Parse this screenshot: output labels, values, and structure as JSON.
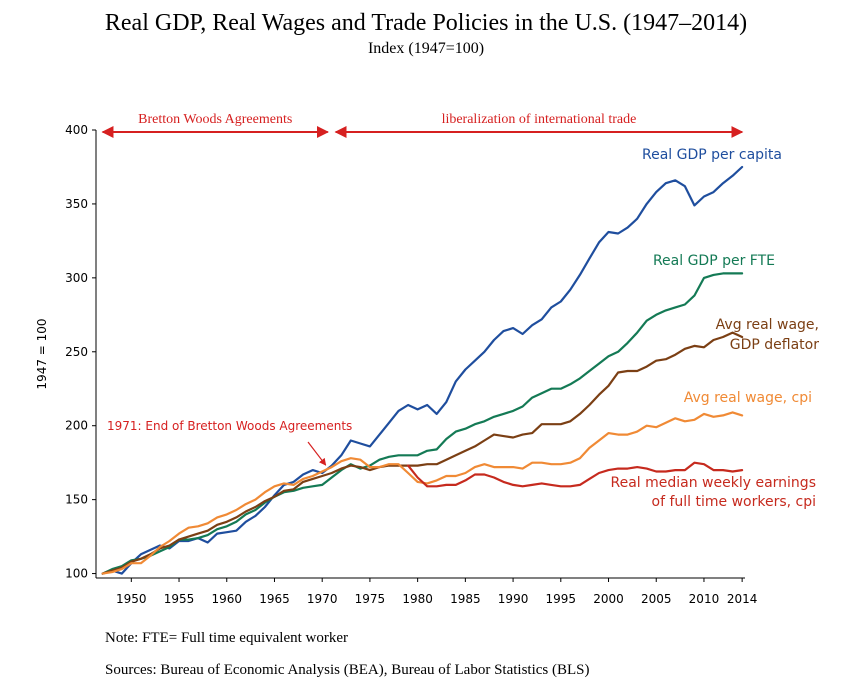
{
  "header": {
    "title": "Real GDP, Real Wages and Trade Policies in the U.S. (1947–2014)",
    "subtitle": "Index (1947=100)"
  },
  "footer": {
    "note": "Note: FTE= Full time equivalent worker",
    "sources": "Sources:  Bureau of Economic Analysis (BEA), Bureau of Labor Statistics (BLS)"
  },
  "chart_data": {
    "type": "line",
    "title": "Real GDP, Real Wages and Trade Policies in the U.S. (1947–2014)",
    "subtitle": "Index (1947=100)",
    "ylabel": "1947 = 100",
    "xlabel": "",
    "xlim": [
      1946.3,
      2014.3
    ],
    "ylim": [
      97,
      400
    ],
    "x_ticks": [
      1950,
      1955,
      1960,
      1965,
      1970,
      1975,
      1980,
      1985,
      1990,
      1995,
      2000,
      2005,
      2010,
      2014
    ],
    "y_ticks": [
      100,
      150,
      200,
      250,
      300,
      350,
      400
    ],
    "grid": false,
    "colors": {
      "gdp_per_capita": "#1f4e9e",
      "gdp_per_fte": "#147a55",
      "wage_deflator": "#7b3f14",
      "wage_cpi": "#f08a35",
      "median_earnings": "#c62a1e",
      "annotation": "#d62020"
    },
    "periods": [
      {
        "label": "Bretton Woods Agreements",
        "from": 1947,
        "to": 1971
      },
      {
        "label": "liberalization of international trade",
        "from": 1971,
        "to": 2014
      }
    ],
    "annotation": {
      "text": "1971: End of Bretton Woods Agreements",
      "x": 1971,
      "y": 176
    },
    "series": [
      {
        "name": "Real GDP per capita",
        "key": "gdp_per_capita",
        "x": [
          1947,
          1948,
          1949,
          1950,
          1951,
          1952,
          1953,
          1954,
          1955,
          1956,
          1957,
          1958,
          1959,
          1960,
          1961,
          1962,
          1963,
          1964,
          1965,
          1966,
          1967,
          1968,
          1969,
          1970,
          1971,
          1972,
          1973,
          1974,
          1975,
          1976,
          1977,
          1978,
          1979,
          1980,
          1981,
          1982,
          1983,
          1984,
          1985,
          1986,
          1987,
          1988,
          1989,
          1990,
          1991,
          1992,
          1993,
          1994,
          1995,
          1996,
          1997,
          1998,
          1999,
          2000,
          2001,
          2002,
          2003,
          2004,
          2005,
          2006,
          2007,
          2008,
          2009,
          2010,
          2011,
          2012,
          2013,
          2014
        ],
        "values": [
          100,
          102,
          100,
          107,
          113,
          116,
          119,
          117,
          122,
          122,
          124,
          121,
          127,
          128,
          129,
          135,
          139,
          145,
          153,
          160,
          162,
          167,
          170,
          168,
          173,
          180,
          190,
          188,
          186,
          194,
          202,
          210,
          214,
          211,
          214,
          208,
          216,
          230,
          238,
          244,
          250,
          258,
          264,
          266,
          262,
          268,
          272,
          280,
          284,
          292,
          302,
          313,
          324,
          331,
          330,
          334,
          340,
          350,
          358,
          364,
          366,
          362,
          349,
          355,
          358,
          364,
          369,
          375
        ]
      },
      {
        "name": "Real GDP per FTE",
        "key": "gdp_per_fte",
        "x": [
          1947,
          1948,
          1949,
          1950,
          1951,
          1952,
          1953,
          1954,
          1955,
          1956,
          1957,
          1958,
          1959,
          1960,
          1961,
          1962,
          1963,
          1964,
          1965,
          1966,
          1967,
          1968,
          1969,
          1970,
          1971,
          1972,
          1973,
          1974,
          1975,
          1976,
          1977,
          1978,
          1979,
          1980,
          1981,
          1982,
          1983,
          1984,
          1985,
          1986,
          1987,
          1988,
          1989,
          1990,
          1991,
          1992,
          1993,
          1994,
          1995,
          1996,
          1997,
          1998,
          1999,
          2000,
          2001,
          2002,
          2003,
          2004,
          2005,
          2006,
          2007,
          2008,
          2009,
          2010,
          2011,
          2012,
          2013,
          2014
        ],
        "values": [
          100,
          103,
          105,
          109,
          110,
          112,
          115,
          118,
          123,
          123,
          124,
          126,
          130,
          132,
          135,
          140,
          143,
          148,
          152,
          155,
          156,
          158,
          159,
          160,
          165,
          170,
          174,
          171,
          173,
          177,
          179,
          180,
          180,
          180,
          183,
          184,
          191,
          196,
          198,
          201,
          203,
          206,
          208,
          210,
          213,
          219,
          222,
          225,
          225,
          228,
          232,
          237,
          242,
          247,
          250,
          256,
          263,
          271,
          275,
          278,
          280,
          282,
          288,
          300,
          302,
          303,
          303,
          303
        ]
      },
      {
        "name": "Avg real wage, GDP deflator",
        "key": "wage_deflator",
        "x": [
          1947,
          1948,
          1949,
          1950,
          1951,
          1952,
          1953,
          1954,
          1955,
          1956,
          1957,
          1958,
          1959,
          1960,
          1961,
          1962,
          1963,
          1964,
          1965,
          1966,
          1967,
          1968,
          1969,
          1970,
          1971,
          1972,
          1973,
          1974,
          1975,
          1976,
          1977,
          1978,
          1979,
          1980,
          1981,
          1982,
          1983,
          1984,
          1985,
          1986,
          1987,
          1988,
          1989,
          1990,
          1991,
          1992,
          1993,
          1994,
          1995,
          1996,
          1997,
          1998,
          1999,
          2000,
          2001,
          2002,
          2003,
          2004,
          2005,
          2006,
          2007,
          2008,
          2009,
          2010,
          2011,
          2012,
          2013,
          2014
        ],
        "values": [
          100,
          102,
          104,
          108,
          110,
          113,
          117,
          119,
          123,
          125,
          127,
          129,
          133,
          135,
          138,
          142,
          145,
          149,
          152,
          156,
          157,
          162,
          164,
          166,
          168,
          171,
          173,
          172,
          170,
          172,
          173,
          173,
          173,
          173,
          174,
          174,
          177,
          180,
          183,
          186,
          190,
          194,
          193,
          192,
          194,
          195,
          201,
          201,
          201,
          203,
          208,
          214,
          221,
          227,
          236,
          237,
          237,
          240,
          244,
          245,
          248,
          252,
          254,
          253,
          258,
          260,
          263,
          260
        ]
      },
      {
        "name": "Avg real wage, cpi",
        "key": "wage_cpi",
        "x": [
          1947,
          1948,
          1949,
          1950,
          1951,
          1952,
          1953,
          1954,
          1955,
          1956,
          1957,
          1958,
          1959,
          1960,
          1961,
          1962,
          1963,
          1964,
          1965,
          1966,
          1967,
          1968,
          1969,
          1970,
          1971,
          1972,
          1973,
          1974,
          1975,
          1976,
          1977,
          1978,
          1979,
          1980,
          1981,
          1982,
          1983,
          1984,
          1985,
          1986,
          1987,
          1988,
          1989,
          1990,
          1991,
          1992,
          1993,
          1994,
          1995,
          1996,
          1997,
          1998,
          1999,
          2000,
          2001,
          2002,
          2003,
          2004,
          2005,
          2006,
          2007,
          2008,
          2009,
          2010,
          2011,
          2012,
          2013,
          2014
        ],
        "values": [
          100,
          101,
          103,
          107,
          107,
          112,
          118,
          122,
          127,
          131,
          132,
          134,
          138,
          140,
          143,
          147,
          150,
          155,
          159,
          161,
          160,
          164,
          166,
          169,
          172,
          176,
          178,
          177,
          172,
          172,
          174,
          174,
          168,
          162,
          161,
          163,
          166,
          166,
          168,
          172,
          174,
          172,
          172,
          172,
          171,
          175,
          175,
          174,
          174,
          175,
          178,
          185,
          190,
          195,
          194,
          194,
          196,
          200,
          199,
          202,
          205,
          203,
          204,
          208,
          206,
          207,
          209,
          207
        ]
      },
      {
        "name": "Real median weekly earnings of full time workers, cpi",
        "key": "median_earnings",
        "x": [
          1979,
          1980,
          1981,
          1982,
          1983,
          1984,
          1985,
          1986,
          1987,
          1988,
          1989,
          1990,
          1991,
          1992,
          1993,
          1994,
          1995,
          1996,
          1997,
          1998,
          1999,
          2000,
          2001,
          2002,
          2003,
          2004,
          2005,
          2006,
          2007,
          2008,
          2009,
          2010,
          2011,
          2012,
          2013,
          2014
        ],
        "values": [
          173,
          165,
          159,
          159,
          160,
          160,
          163,
          167,
          167,
          165,
          162,
          160,
          159,
          160,
          161,
          160,
          159,
          159,
          160,
          164,
          168,
          170,
          171,
          171,
          172,
          171,
          169,
          169,
          170,
          170,
          175,
          174,
          170,
          170,
          169,
          170
        ]
      }
    ],
    "labels": {
      "gdp_per_capita": [
        "Real GDP per capita"
      ],
      "gdp_per_fte": [
        "Real GDP per FTE"
      ],
      "wage_deflator": [
        "Avg real wage,",
        "GDP deflator"
      ],
      "wage_cpi": [
        "Avg real wage, cpi"
      ],
      "median_earnings": [
        "Real median weekly earnings",
        "of full time workers, cpi"
      ]
    }
  }
}
